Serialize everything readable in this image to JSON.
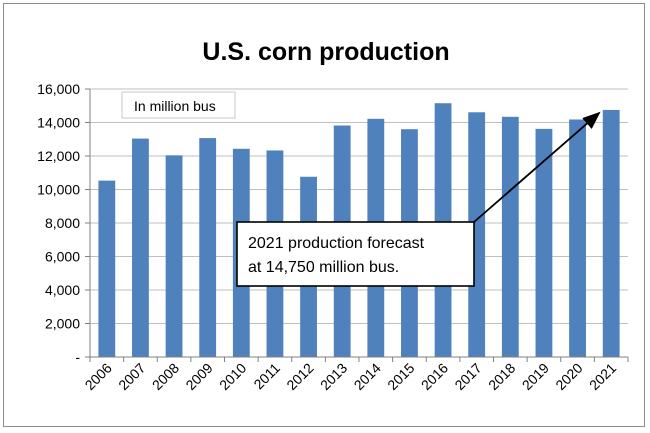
{
  "chart_data": {
    "type": "bar",
    "title": "U.S. corn production",
    "units_note": "In million bus",
    "categories": [
      "2006",
      "2007",
      "2008",
      "2009",
      "2010",
      "2011",
      "2012",
      "2013",
      "2014",
      "2015",
      "2016",
      "2017",
      "2018",
      "2019",
      "2020",
      "2021"
    ],
    "values": [
      10530,
      13040,
      12040,
      13070,
      12430,
      12330,
      10760,
      13820,
      14220,
      13600,
      15150,
      14610,
      14340,
      13620,
      14180,
      14750
    ],
    "ylim": [
      0,
      16000
    ],
    "yticks": [
      "-",
      "2,000",
      "4,000",
      "6,000",
      "8,000",
      "10,000",
      "12,000",
      "14,000",
      "16,000"
    ],
    "grid": true,
    "bar_color": "#4f81bd",
    "annotation": {
      "lines": [
        "2021 production forecast",
        "at 14,750 million bus."
      ],
      "points_to": "2021"
    }
  }
}
